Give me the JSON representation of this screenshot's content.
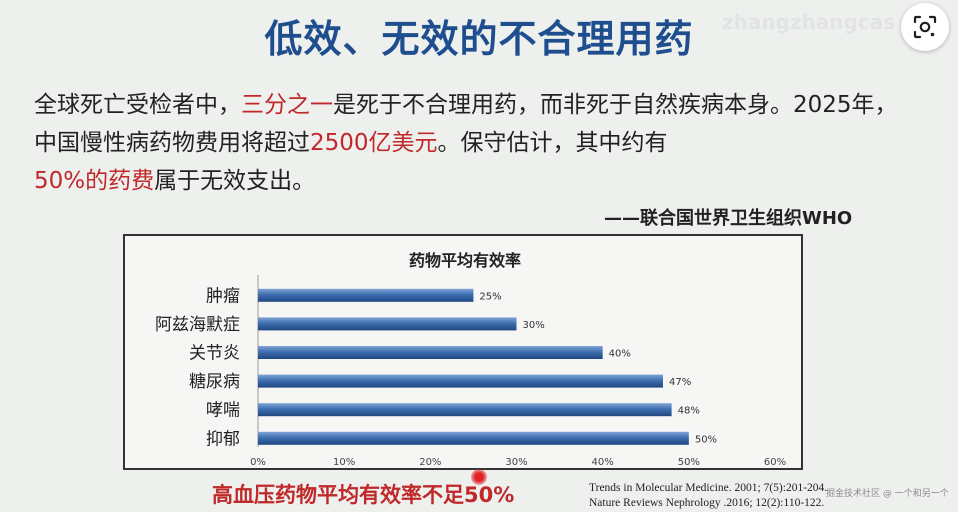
{
  "slide": {
    "title": "低效、无效的不合理用药",
    "watermark": "zhangzhangcas",
    "paragraph": {
      "p1": "全球死亡受检者中，",
      "p1_red": "三分之一",
      "p2": "是死于不合理用药，而非死于自然疾病本身。2025年，中国慢性病药物费用将超过",
      "p2_red": "2500亿美元",
      "p3": "。保守估计，其中约有",
      "p3_red": "50%的药费",
      "p4": "属于无效支出。"
    },
    "source": "——联合国世界卫生组织WHO",
    "bottom_note": "高血压药物平均有效率不足50%",
    "references": [
      "Trends in Molecular Medicine. 2001; 7(5):201-204.",
      "Nature Reviews  Nephrology .2016; 12(2):110-122."
    ],
    "credit": "掘金技术社区 @ 一个和另一个"
  },
  "lens_button": {
    "icon": "lens-icon"
  },
  "colors": {
    "title": "#1f4e8f",
    "highlight": "#c0282a",
    "bar": "#3f6fb0"
  },
  "chart_data": {
    "type": "bar",
    "orientation": "horizontal",
    "title": "药物平均有效率",
    "categories": [
      "肿瘤",
      "阿兹海默症",
      "关节炎",
      "糖尿病",
      "哮喘",
      "抑郁"
    ],
    "values": [
      25,
      30,
      40,
      47,
      48,
      50
    ],
    "value_labels": [
      "25%",
      "30%",
      "40%",
      "47%",
      "48%",
      "50%"
    ],
    "xlim": [
      0,
      60
    ],
    "xticks": [
      0,
      10,
      20,
      30,
      40,
      50,
      60
    ],
    "xtick_labels": [
      "0%",
      "10%",
      "20%",
      "30%",
      "40%",
      "50%",
      "60%"
    ],
    "xlabel": "",
    "ylabel": "",
    "grid": false,
    "legend": "none"
  }
}
